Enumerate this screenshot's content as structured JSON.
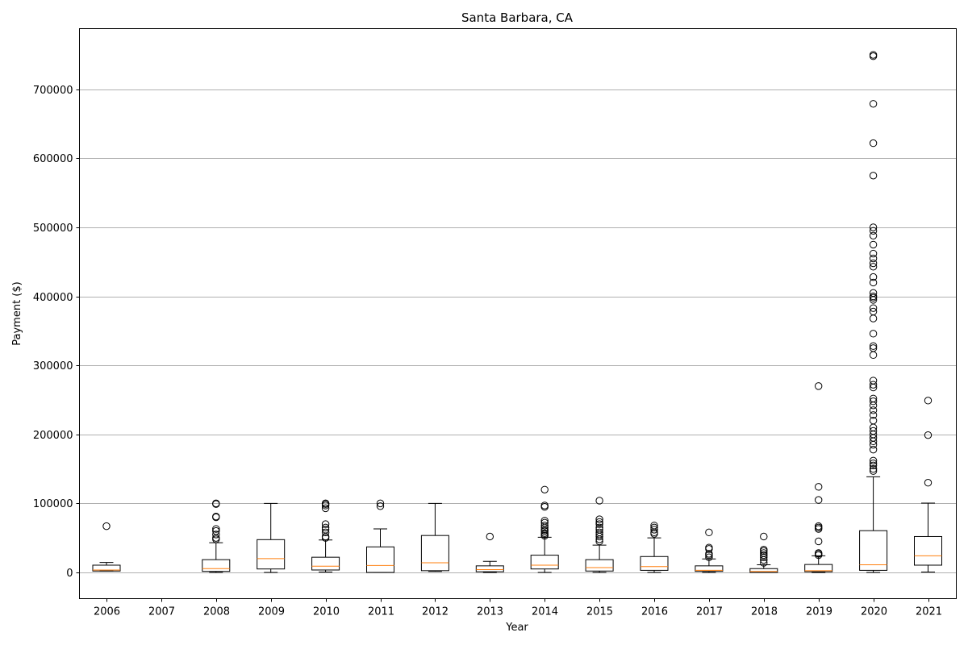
{
  "chart_data": {
    "type": "box",
    "title": "Santa Barbara, CA",
    "xlabel": "Year",
    "ylabel": "Payment ($)",
    "ylim": [
      -38000,
      788000
    ],
    "yticks": [
      0,
      100000,
      200000,
      300000,
      400000,
      500000,
      600000,
      700000
    ],
    "grid": "y",
    "categories": [
      "2006",
      "2007",
      "2008",
      "2009",
      "2010",
      "2011",
      "2012",
      "2013",
      "2014",
      "2015",
      "2016",
      "2017",
      "2018",
      "2019",
      "2020",
      "2021"
    ],
    "boxes": [
      {
        "year": "2006",
        "whislo": 2000,
        "q1": 2000,
        "med": 3500,
        "q3": 10500,
        "whishi": 14500,
        "fliers": [
          67000
        ]
      },
      {
        "year": "2007",
        "empty": true
      },
      {
        "year": "2008",
        "whislo": 0,
        "q1": 1500,
        "med": 5500,
        "q3": 18500,
        "whishi": 43000,
        "fliers": [
          48000,
          50000,
          55000,
          60000,
          63000,
          80000,
          81000,
          99000,
          100000
        ]
      },
      {
        "year": "2009",
        "whislo": 0,
        "q1": 5000,
        "med": 20000,
        "q3": 47500,
        "whishi": 100000,
        "fliers": []
      },
      {
        "year": "2010",
        "whislo": 500,
        "q1": 3500,
        "med": 9000,
        "q3": 22000,
        "whishi": 47000,
        "fliers": [
          50000,
          52000,
          58000,
          62000,
          65000,
          70000,
          93000,
          97000,
          99000,
          100000
        ]
      },
      {
        "year": "2011",
        "whislo": 0,
        "q1": 0,
        "med": 10000,
        "q3": 37000,
        "whishi": 63000,
        "fliers": [
          96000,
          100000
        ]
      },
      {
        "year": "2012",
        "whislo": 1500,
        "q1": 2500,
        "med": 14000,
        "q3": 53500,
        "whishi": 100000,
        "fliers": []
      },
      {
        "year": "2013",
        "whislo": 0,
        "q1": 1000,
        "med": 4000,
        "q3": 9500,
        "whishi": 16000,
        "fliers": [
          52000
        ]
      },
      {
        "year": "2014",
        "whislo": 0,
        "q1": 5000,
        "med": 10500,
        "q3": 25000,
        "whishi": 51000,
        "fliers": [
          53000,
          55000,
          57000,
          60000,
          62000,
          65000,
          68000,
          72000,
          75000,
          95000,
          97000,
          120000
        ]
      },
      {
        "year": "2015",
        "whislo": 0,
        "q1": 2000,
        "med": 7000,
        "q3": 18500,
        "whishi": 39500,
        "fliers": [
          45000,
          48000,
          52000,
          55000,
          58000,
          62000,
          65000,
          70000,
          73000,
          77000,
          104000
        ]
      },
      {
        "year": "2016",
        "whislo": 0,
        "q1": 3000,
        "med": 8500,
        "q3": 23000,
        "whishi": 50000,
        "fliers": [
          56000,
          58000,
          62000,
          65000,
          68000
        ]
      },
      {
        "year": "2017",
        "whislo": 0,
        "q1": 1500,
        "med": 3000,
        "q3": 9500,
        "whishi": 19500,
        "fliers": [
          22000,
          25000,
          27000,
          34000,
          36000,
          58000
        ]
      },
      {
        "year": "2018",
        "whislo": 0,
        "q1": 0,
        "med": 1500,
        "q3": 5500,
        "whishi": 11000,
        "fliers": [
          14000,
          18000,
          22000,
          25000,
          28000,
          31000,
          33000,
          52000
        ]
      },
      {
        "year": "2019",
        "whislo": 0,
        "q1": 1000,
        "med": 2500,
        "q3": 11500,
        "whishi": 24000,
        "fliers": [
          25000,
          27000,
          28000,
          45000,
          63000,
          65000,
          67000,
          105000,
          124000,
          270000
        ]
      },
      {
        "year": "2020",
        "whislo": 0,
        "q1": 3000,
        "med": 11000,
        "q3": 60500,
        "whishi": 138500,
        "fliers": [
          147000,
          150000,
          155000,
          158000,
          162000,
          178000,
          185000,
          190000,
          195000,
          200000,
          205000,
          210000,
          220000,
          228000,
          235000,
          242000,
          248000,
          252000,
          268000,
          272000,
          278000,
          315000,
          325000,
          328000,
          346000,
          368000,
          378000,
          383000,
          395000,
          398000,
          400000,
          405000,
          420000,
          428000,
          443000,
          448000,
          455000,
          462000,
          475000,
          488000,
          495000,
          500000,
          575000,
          622000,
          679000,
          748000,
          750000
        ]
      },
      {
        "year": "2021",
        "whislo": 500,
        "q1": 10500,
        "med": 24000,
        "q3": 52000,
        "whishi": 100500,
        "fliers": [
          130000,
          199000,
          249000
        ]
      }
    ]
  }
}
